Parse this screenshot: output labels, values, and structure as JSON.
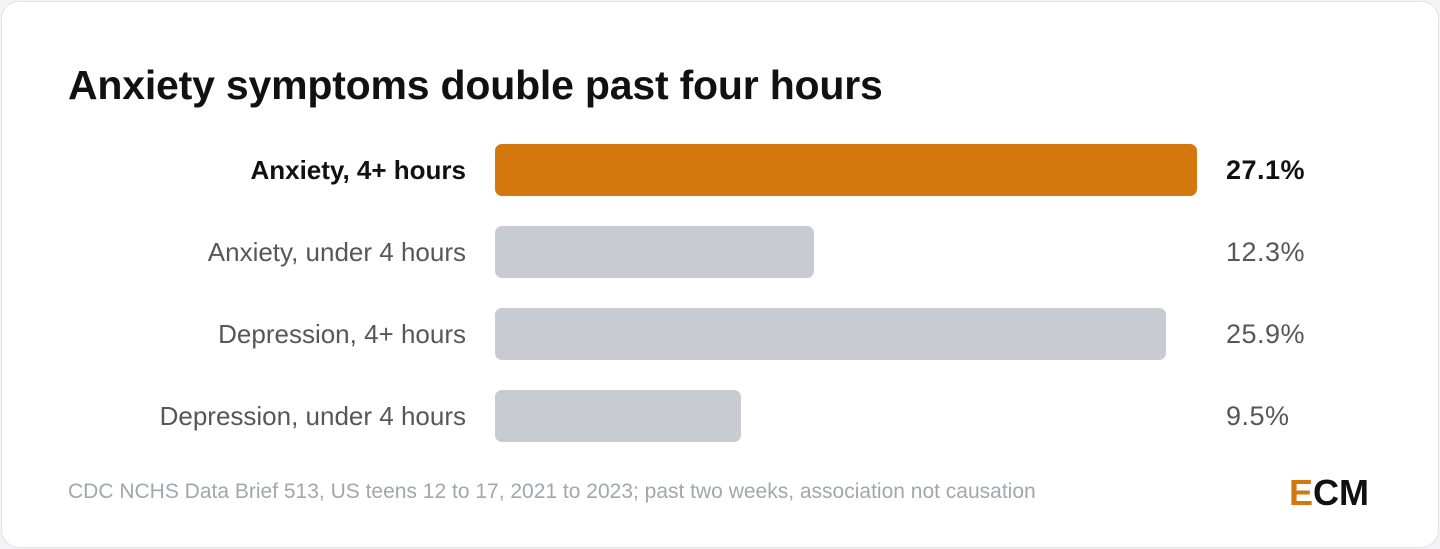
{
  "chart_data": {
    "type": "bar",
    "orientation": "horizontal",
    "title": "Anxiety symptoms double past four hours",
    "categories": [
      "Anxiety, 4+ hours",
      "Anxiety, under 4 hours",
      "Depression, 4+ hours",
      "Depression, under 4 hours"
    ],
    "values": [
      27.1,
      12.3,
      25.9,
      9.5
    ],
    "value_labels": [
      "27.1%",
      "12.3%",
      "25.9%",
      "9.5%"
    ],
    "highlight_index": 0,
    "xlim": [
      0,
      27.1
    ],
    "grid": false,
    "colors": {
      "highlight": "#d4770c",
      "default": "#c9cbd3"
    }
  },
  "footer": {
    "source": "CDC NCHS Data Brief 513, US teens 12 to 17, 2021 to 2023; past two weeks, association not causation",
    "logo_first": "E",
    "logo_rest": "CM"
  }
}
